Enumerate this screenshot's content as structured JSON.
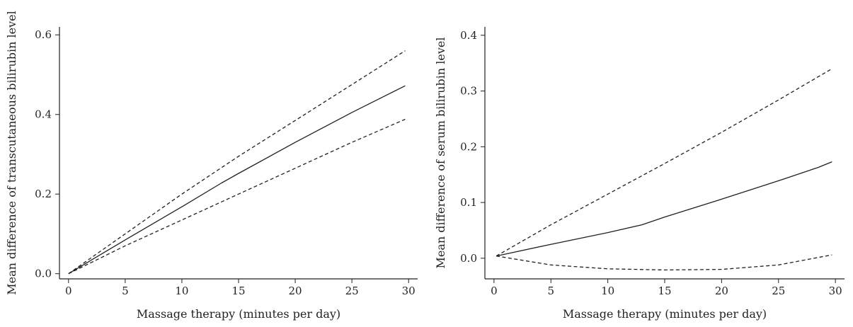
{
  "chart_data": [
    {
      "type": "line",
      "xlabel": "Massage therapy (minutes per day)",
      "ylabel": "Mean difference of transcutaneous bilirubin level",
      "xlim": [
        -0.8,
        30.8
      ],
      "ylim": [
        -0.013,
        0.62
      ],
      "xticks": [
        "0",
        "5",
        "10",
        "15",
        "20",
        "25",
        "30"
      ],
      "yticks": [
        "0.0",
        "0.2",
        "0.4",
        "0.6"
      ],
      "grid": false,
      "series": [
        {
          "style": "solid",
          "color": "#231f20",
          "x": [
            0,
            5,
            10,
            13.5,
            15,
            20,
            25,
            29.7
          ],
          "y": [
            0,
            0.085,
            0.168,
            0.228,
            0.252,
            0.33,
            0.405,
            0.472
          ]
        },
        {
          "style": "dashed",
          "color": "#231f20",
          "x": [
            0,
            5,
            10,
            15,
            20,
            25,
            29.7
          ],
          "y": [
            0,
            0.1,
            0.2,
            0.295,
            0.385,
            0.475,
            0.56
          ]
        },
        {
          "style": "dashed",
          "color": "#231f20",
          "x": [
            0,
            5,
            10,
            15,
            20,
            25,
            29.7
          ],
          "y": [
            0,
            0.07,
            0.135,
            0.2,
            0.265,
            0.33,
            0.388
          ]
        }
      ]
    },
    {
      "type": "line",
      "xlabel": "Massage therapy (minutes per day)",
      "ylabel": "Mean difference of serum bilirubin level",
      "xlim": [
        -0.8,
        30.8
      ],
      "ylim": [
        -0.037,
        0.415
      ],
      "xticks": [
        "0",
        "5",
        "10",
        "15",
        "20",
        "25",
        "30"
      ],
      "yticks": [
        "0.0",
        "0.1",
        "0.2",
        "0.3",
        "0.4"
      ],
      "grid": false,
      "series": [
        {
          "style": "solid",
          "color": "#231f20",
          "x": [
            0.2,
            5,
            10,
            13,
            15,
            20,
            25,
            28.5,
            29.7
          ],
          "y": [
            0.004,
            0.025,
            0.046,
            0.06,
            0.074,
            0.106,
            0.139,
            0.163,
            0.173
          ]
        },
        {
          "style": "dashed",
          "color": "#231f20",
          "x": [
            0.2,
            5,
            10,
            15,
            20,
            25,
            29.7
          ],
          "y": [
            0.004,
            0.06,
            0.115,
            0.17,
            0.226,
            0.284,
            0.34
          ]
        },
        {
          "style": "dashed",
          "color": "#231f20",
          "x": [
            0.2,
            5,
            10,
            15,
            20,
            25,
            29.7
          ],
          "y": [
            0.004,
            -0.012,
            -0.019,
            -0.021,
            -0.02,
            -0.012,
            0.006
          ]
        }
      ]
    }
  ]
}
